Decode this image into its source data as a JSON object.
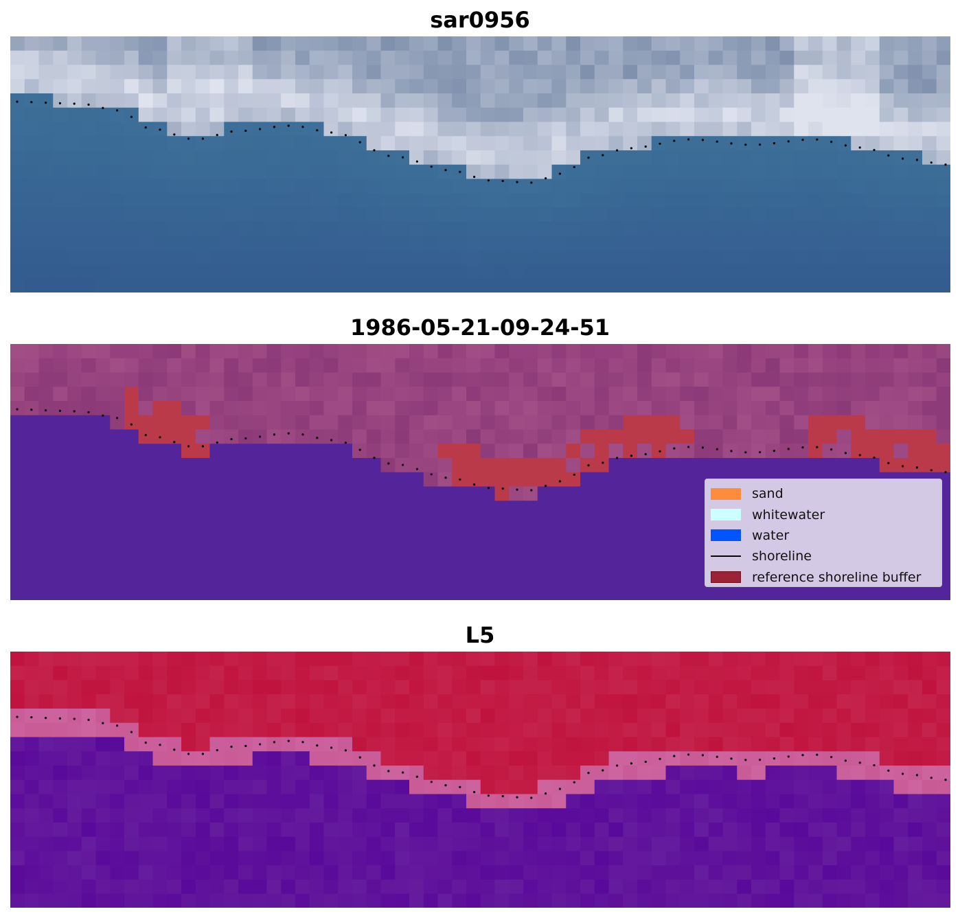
{
  "panels": [
    {
      "title": "sar0956",
      "kind": "rgb-image"
    },
    {
      "title": "1986-05-21-09-24-51",
      "kind": "classification-overlay"
    },
    {
      "title": "L5",
      "kind": "water-index"
    }
  ],
  "legend": {
    "items": [
      {
        "label": "sand",
        "color": "#ff8c3b"
      },
      {
        "label": "whitewater",
        "color": "#ccffff"
      },
      {
        "label": "water",
        "color": "#0055ff"
      },
      {
        "label": "shoreline",
        "color": "#000000",
        "type": "line"
      },
      {
        "label": "reference shoreline buffer",
        "color": "#9b2335"
      }
    ]
  },
  "colors": {
    "rgb_water": "#3c6e98",
    "rgb_cloud": "#dfe3ee",
    "class_water": "#54249a",
    "class_land": "#a14d86",
    "class_buffer": "#bb3a4a",
    "index_high": "#c0143e",
    "index_low": "#5a0a9a",
    "shoreline_dots": "#000000"
  }
}
